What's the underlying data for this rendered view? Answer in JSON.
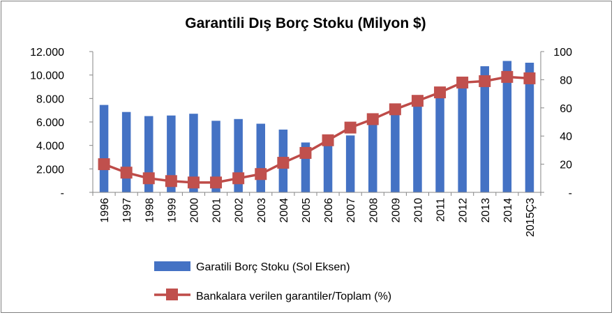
{
  "chart_data": {
    "type": "bar+line",
    "title": "Garantili Dış Borç Stoku (Milyon $)",
    "categories": [
      "1996",
      "1997",
      "1998",
      "1999",
      "2000",
      "2001",
      "2002",
      "2003",
      "2004",
      "2005",
      "2006",
      "2007",
      "2008",
      "2009",
      "2010",
      "2011",
      "2012",
      "2013",
      "2014",
      "2015Ç3"
    ],
    "series": [
      {
        "name": "Garatili Borç Stoku (Sol Eksen)",
        "type": "bar",
        "axis": "left",
        "color": "#4472c4",
        "values": [
          7450,
          6850,
          6500,
          6550,
          6700,
          6100,
          6250,
          5850,
          5350,
          4250,
          4150,
          4850,
          6250,
          7000,
          7750,
          8500,
          9300,
          10750,
          11200,
          11050
        ]
      },
      {
        "name": "Bankalara verilen garantiler/Toplam (%)",
        "type": "line",
        "axis": "right",
        "color": "#be4b48",
        "marker_color": "#c0504d",
        "values": [
          20,
          14,
          10,
          8,
          7,
          7,
          10,
          13,
          21,
          28,
          37,
          46,
          52,
          59,
          65,
          71,
          78,
          79,
          82,
          81
        ]
      }
    ],
    "y_left": {
      "range": [
        0,
        12000
      ],
      "ticks": [
        "-",
        "2.000",
        "4.000",
        "6.000",
        "8.000",
        "10.000",
        "12.000"
      ]
    },
    "y_right": {
      "range": [
        0,
        100
      ],
      "ticks": [
        "-",
        "20",
        "40",
        "60",
        "80",
        "100"
      ]
    },
    "grid": false,
    "legend_position": "bottom"
  }
}
